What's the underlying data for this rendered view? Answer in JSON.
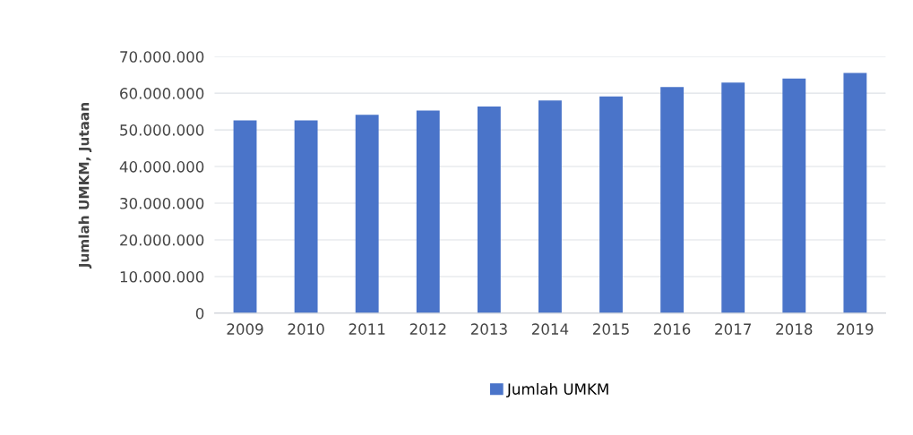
{
  "chart_data": {
    "type": "bar",
    "ylabel": "Jumlah UMKM, Jutaan",
    "categories": [
      "2009",
      "2010",
      "2011",
      "2012",
      "2013",
      "2014",
      "2015",
      "2016",
      "2017",
      "2018",
      "2019"
    ],
    "series": [
      {
        "name": "Jumlah UMKM",
        "color": "#4a74c9",
        "values": [
          52600000,
          52600000,
          54100000,
          55300000,
          56400000,
          58000000,
          59100000,
          61700000,
          62900000,
          64000000,
          65500000
        ]
      }
    ],
    "ylim": [
      0,
      70000000
    ],
    "yticks": [
      {
        "value": 0,
        "label": "0"
      },
      {
        "value": 10000000,
        "label": "10.000.000"
      },
      {
        "value": 20000000,
        "label": "20.000.000"
      },
      {
        "value": 30000000,
        "label": "30.000.000"
      },
      {
        "value": 40000000,
        "label": "40.000.000"
      },
      {
        "value": 50000000,
        "label": "50.000.000"
      },
      {
        "value": 60000000,
        "label": "60.000.000"
      },
      {
        "value": 70000000,
        "label": "70.000.000"
      }
    ],
    "grid": "y",
    "legend": "bottom"
  }
}
